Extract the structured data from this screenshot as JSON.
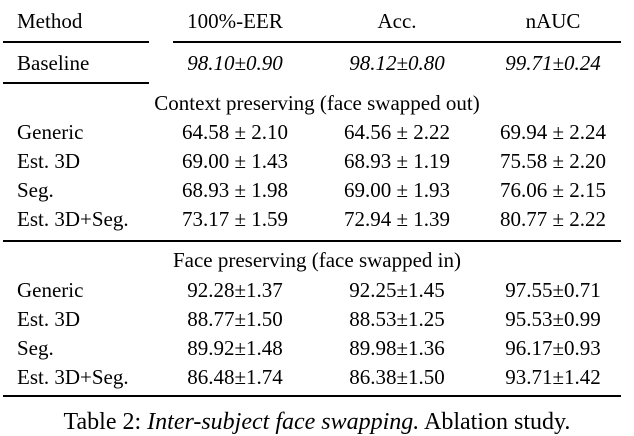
{
  "table": {
    "headers": [
      "Method",
      "100%-EER",
      "Acc.",
      "nAUC"
    ],
    "baseline": {
      "method": "Baseline",
      "eer": "98.10±0.90",
      "acc": "98.12±0.80",
      "nauc": "99.71±0.24"
    },
    "sections": [
      {
        "title": "Context preserving (face swapped out)",
        "rows": [
          {
            "method": "Generic",
            "eer": "64.58 ± 2.10",
            "acc": "64.56 ± 2.22",
            "nauc": "69.94 ± 2.24"
          },
          {
            "method": "Est. 3D",
            "eer": "69.00 ± 1.43",
            "acc": "68.93 ± 1.19",
            "nauc": "75.58 ± 2.20"
          },
          {
            "method": "Seg.",
            "eer": "68.93 ± 1.98",
            "acc": "69.00 ± 1.93",
            "nauc": "76.06 ± 2.15"
          },
          {
            "method": "Est. 3D+Seg.",
            "eer": "73.17 ± 1.59",
            "acc": "72.94 ± 1.39",
            "nauc": "80.77 ± 2.22"
          }
        ]
      },
      {
        "title": "Face preserving (face swapped in)",
        "rows": [
          {
            "method": "Generic",
            "eer": "92.28±1.37",
            "acc": "92.25±1.45",
            "nauc": "97.55±0.71"
          },
          {
            "method": "Est. 3D",
            "eer": "88.77±1.50",
            "acc": "88.53±1.25",
            "nauc": "95.53±0.99"
          },
          {
            "method": "Seg.",
            "eer": "89.92±1.48",
            "acc": "89.98±1.36",
            "nauc": "96.17±0.93"
          },
          {
            "method": "Est. 3D+Seg.",
            "eer": "86.48±1.74",
            "acc": "86.38±1.50",
            "nauc": "93.71±1.42"
          }
        ]
      }
    ]
  },
  "caption": {
    "prefix": "Table 2: ",
    "italic": "Inter-subject face swapping.",
    "suffix": " Ablation study."
  }
}
